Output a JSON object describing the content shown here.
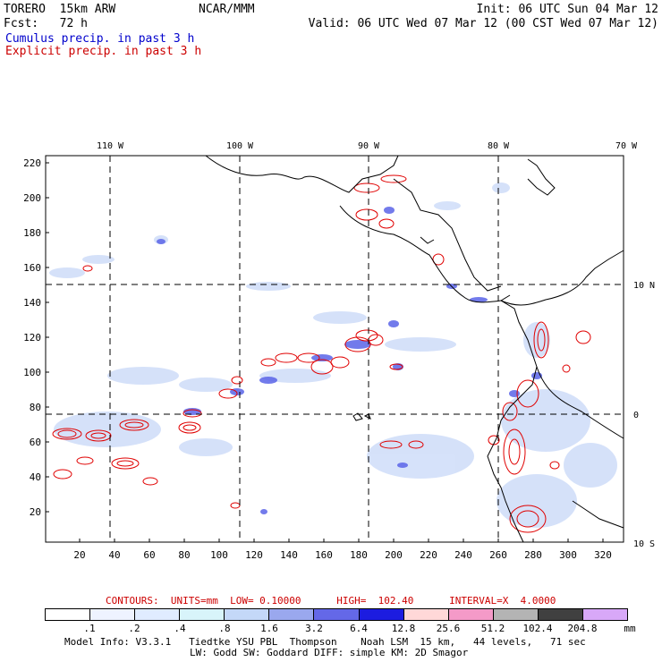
{
  "header": {
    "model": "TORERO  15km ARW",
    "center": "NCAR/MMM",
    "init": "Init: 06 UTC Sun 04 Mar 12",
    "fcst": "Fcst:   72 h",
    "valid": "Valid: 06 UTC Wed 07 Mar 12 (00 CST Wed 07 Mar 12)",
    "cumulus": "Cumulus precip. in past 3 h",
    "explicit": "Explicit precip. in past 3 h"
  },
  "colors": {
    "cumulus_title": "#0000cc",
    "explicit_title": "#cc0000",
    "contour": "#e00000",
    "coast": "#000000"
  },
  "map": {
    "lon_labels": [
      "110 W",
      "100 W",
      "90 W",
      "80 W",
      "70 W"
    ],
    "lat_labels": [
      "10 N",
      "0",
      "10 S"
    ],
    "y_ticks": [
      "220",
      "200",
      "180",
      "160",
      "140",
      "120",
      "100",
      "80",
      "60",
      "40",
      "20"
    ],
    "x_ticks": [
      "20",
      "40",
      "60",
      "80",
      "100",
      "120",
      "140",
      "160",
      "180",
      "200",
      "220",
      "240",
      "260",
      "280",
      "300",
      "320"
    ]
  },
  "footer": {
    "contours": "CONTOURS:  UNITS=mm  LOW= 0.10000      HIGH=  102.40      INTERVAL=X  4.0000",
    "colorbar_values": [
      ".1",
      ".2",
      ".4",
      ".8",
      "1.6",
      "3.2",
      "6.4",
      "12.8",
      "25.6",
      "51.2",
      "102.4",
      "204.8",
      "mm"
    ],
    "colorbar_colors": [
      "#ffffff",
      "#eef3ff",
      "#e0ecff",
      "#d8f4fa",
      "#c4d8f8",
      "#9aa8ee",
      "#6468e8",
      "#1c1ce0",
      "#ffd8d8",
      "#f49ac8",
      "#b4b4b4",
      "#404040",
      "#d8a8f8"
    ],
    "model_info_1": "Model Info: V3.3.1   Tiedtke YSU PBL  Thompson    Noah LSM  15 km,   44 levels,   71 sec",
    "model_info_2": "LW: Godd SW: Goddard DIFF: simple KM: 2D Smagor"
  }
}
